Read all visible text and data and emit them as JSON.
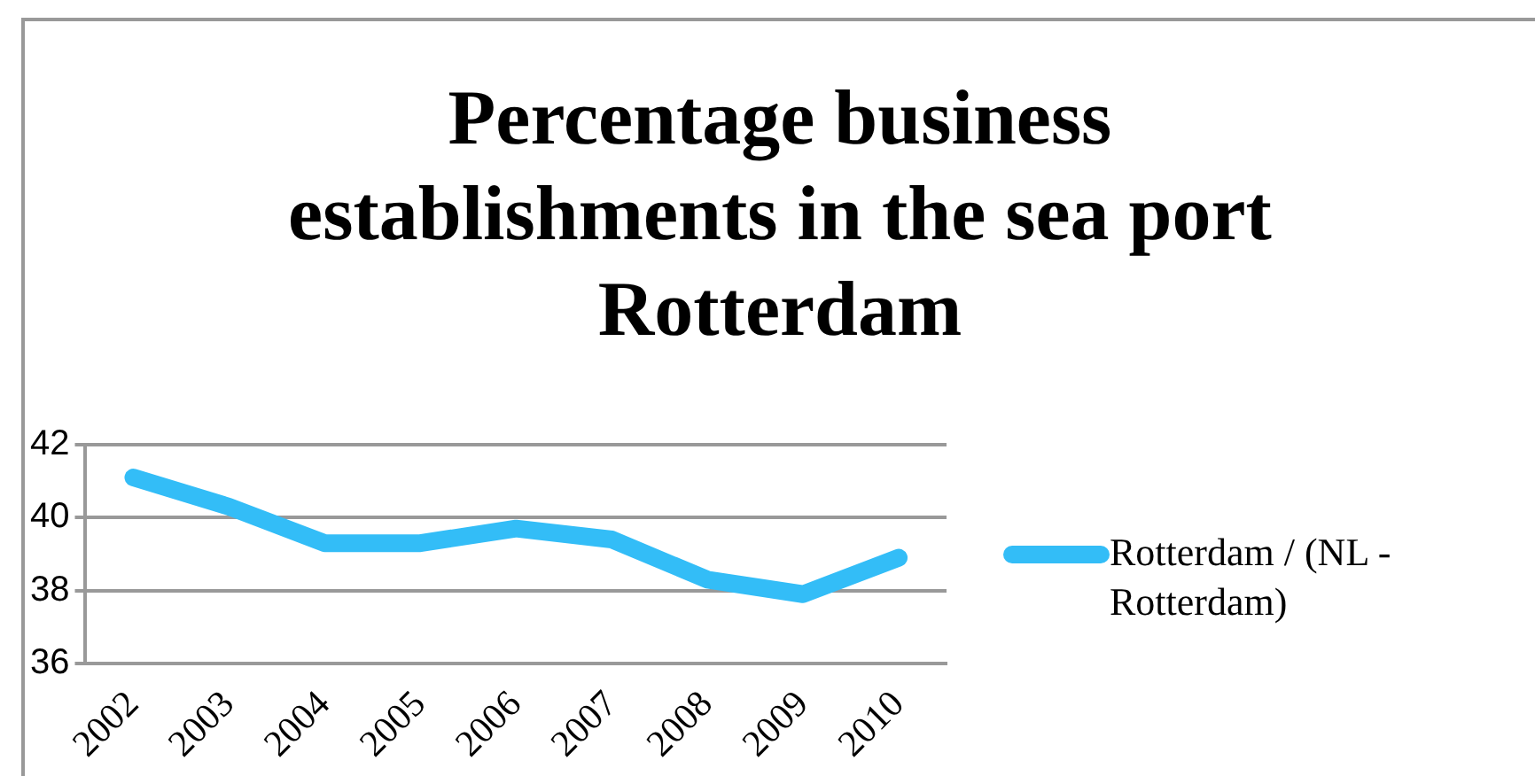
{
  "chart_data": {
    "type": "line",
    "title": "Percentage business establishments in the sea port Rotterdam",
    "categories": [
      "2002",
      "2003",
      "2004",
      "2005",
      "2006",
      "2007",
      "2008",
      "2009",
      "2010"
    ],
    "series": [
      {
        "name": "Rotterdam / (NL - Rotterdam)",
        "color": "#33bdf7",
        "values": [
          41.1,
          40.3,
          39.3,
          39.3,
          39.7,
          39.4,
          38.3,
          37.9,
          38.9
        ]
      }
    ],
    "ylim": [
      36,
      42
    ],
    "yticks": [
      36,
      38,
      40,
      42
    ],
    "grid": "y",
    "legend": "right",
    "marker": "none",
    "line_style": "solid"
  }
}
